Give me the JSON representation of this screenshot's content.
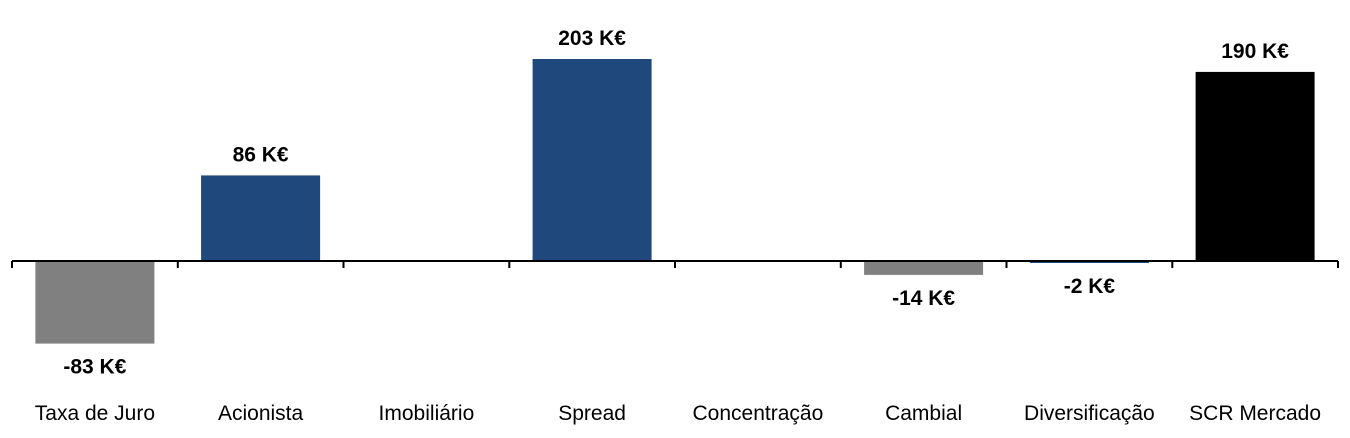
{
  "chart_data": {
    "type": "bar",
    "title": "",
    "xlabel": "",
    "ylabel": "",
    "unit": "K€",
    "ylim": [
      -100,
      215
    ],
    "grid": false,
    "legend": "none",
    "categories": [
      "Taxa de Juro",
      "Acionista",
      "Imobiliário",
      "Spread",
      "Concentração",
      "Cambial",
      "Diversificação",
      "SCR Mercado"
    ],
    "values": [
      -83,
      86,
      0,
      203,
      0,
      -14,
      -2,
      190
    ],
    "data_labels": [
      "-83 K€",
      "86 K€",
      "",
      "203 K€",
      "",
      "-14 K€",
      "-2 K€",
      "190 K€"
    ],
    "bar_colors": [
      "#808080",
      "#1f497d",
      "#1f497d",
      "#1f497d",
      "#1f497d",
      "#808080",
      "#1f497d",
      "#000000"
    ]
  }
}
